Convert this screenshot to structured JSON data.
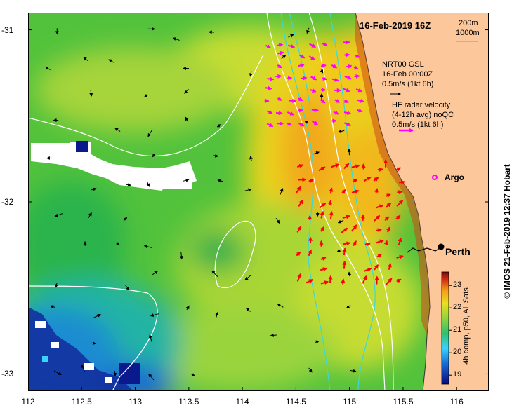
{
  "map": {
    "datetime_title": "16-Feb-2019 16Z",
    "depth_legend": {
      "line1": "200m",
      "line2": "1000m"
    },
    "glider_legend": {
      "line1": "NRT00 GSL",
      "line2": "16-Feb 00:00Z",
      "line3": "0.5m/s (1kt 6h)"
    },
    "radar_legend": {
      "line1": "HF radar velocity",
      "line2": "(4-12h avg) noQC",
      "line3": "0.5m/s (1kt 6h)"
    },
    "argo_label": "Argo",
    "city_label": "Perth",
    "credit": "© IMOS 21-Feb-2019 12:37 Hobart",
    "colorbar": {
      "label": "4h comp, p50, All Sats",
      "ticks": [
        "19",
        "20",
        "21",
        "22",
        "23"
      ],
      "min": 18.6,
      "max": 23.6
    },
    "lon_ticks": [
      "112",
      "112.5",
      "113",
      "113.5",
      "114",
      "114.5",
      "115",
      "115.5",
      "116"
    ],
    "lat_ticks": [
      "-31",
      "-32",
      "-33"
    ],
    "lon_range": [
      112,
      116.3
    ],
    "lat_range": [
      -30.9,
      -33.1
    ],
    "colors": {
      "land": "#fcc79a",
      "radar_arrow": "#ff00ff",
      "depth_200": "#ffffff",
      "depth_1000": "#3cd8d8"
    }
  }
}
